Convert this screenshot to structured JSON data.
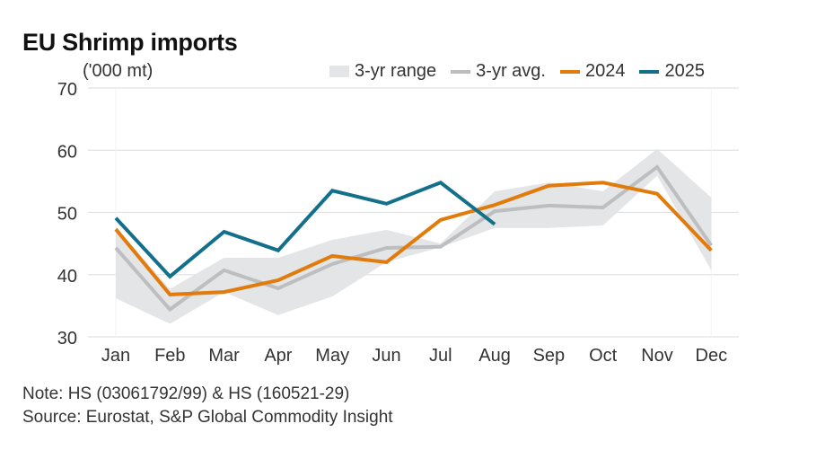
{
  "chart_data": {
    "type": "line",
    "title": "EU Shrimp imports",
    "ylabel": "('000 mt)",
    "xlabel": "",
    "ylim": [
      30,
      70
    ],
    "yticks": [
      30,
      40,
      50,
      60,
      70
    ],
    "grid": true,
    "legend_position": "top-right",
    "categories": [
      "Jan",
      "Feb",
      "Mar",
      "Apr",
      "May",
      "Jun",
      "Jul",
      "Aug",
      "Sep",
      "Oct",
      "Nov",
      "Dec"
    ],
    "range": {
      "name": "3-yr range",
      "color": "#e4e5e7",
      "upper": [
        47.6,
        37.7,
        42.7,
        42.7,
        45.6,
        47.2,
        45.0,
        53.4,
        54.8,
        53.4,
        60.2,
        52.4
      ],
      "lower": [
        36.2,
        32.1,
        37.2,
        33.5,
        36.5,
        42.0,
        44.4,
        47.5,
        47.5,
        47.9,
        55.9,
        40.7
      ]
    },
    "series": [
      {
        "name": "3-yr avg.",
        "color": "#bdbec0",
        "values": [
          44.3,
          34.4,
          40.7,
          37.8,
          41.7,
          44.3,
          44.5,
          50.2,
          51.1,
          50.8,
          57.3,
          44.7
        ]
      },
      {
        "name": "2024",
        "color": "#e07b0c",
        "values": [
          47.3,
          36.8,
          37.2,
          39.1,
          43.0,
          42.0,
          48.8,
          51.2,
          54.3,
          54.8,
          53.0,
          43.9
        ]
      },
      {
        "name": "2025",
        "color": "#12708a",
        "values": [
          49.1,
          39.7,
          46.9,
          43.9,
          53.5,
          51.4,
          54.8,
          48.1,
          null,
          null,
          null,
          null
        ]
      }
    ],
    "annotations": []
  },
  "notes": {
    "note": "Note: HS (03061792/99) & HS (160521-29)",
    "source": "Source: Eurostat, S&P Global Commodity Insight"
  }
}
